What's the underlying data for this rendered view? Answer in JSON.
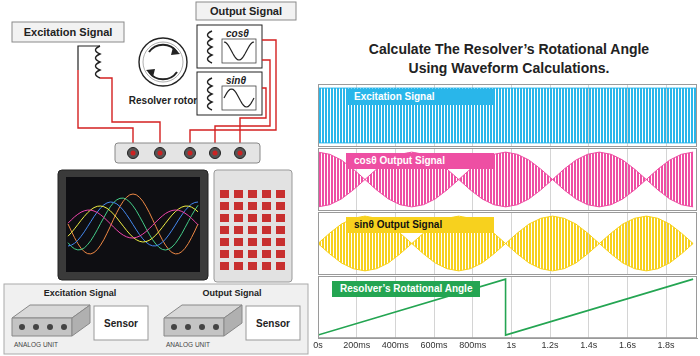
{
  "diagram": {
    "excitation_label": "Excitation Signal",
    "output_label": "Output Signal",
    "cos_label": "cosθ",
    "sin_label": "sinθ",
    "rotor_label": "Resolver rotor",
    "units": [
      {
        "title": "Excitation Signal",
        "device": "ANALOG UNIT",
        "box": "Sensor"
      },
      {
        "title": "Output Signal",
        "device": "ANALOG UNIT",
        "box": "Sensor"
      }
    ]
  },
  "chart_data": {
    "type": "line",
    "title": [
      "Calculate The Resolver’s Rotational Angle",
      "Using Waveform Calculations."
    ],
    "xlim": [
      0,
      1.96
    ],
    "xticks": [
      {
        "value": 0,
        "label": "0s"
      },
      {
        "value": 0.2,
        "label": "200ms"
      },
      {
        "value": 0.4,
        "label": "400ms"
      },
      {
        "value": 0.6,
        "label": "600ms"
      },
      {
        "value": 0.8,
        "label": "800ms"
      },
      {
        "value": 1,
        "label": "1s"
      },
      {
        "value": 1.2,
        "label": "1.2s"
      },
      {
        "value": 1.4,
        "label": "1.4s"
      },
      {
        "value": 1.6,
        "label": "1.6s"
      },
      {
        "value": 1.8,
        "label": "1.8s"
      }
    ],
    "grid": true,
    "tick_labels": "x",
    "series": [
      {
        "name": "Excitation Signal",
        "type": "envelope",
        "color": "#29b6ea",
        "ylim": [
          -1.15,
          1.15
        ],
        "x": [
          0,
          1.96
        ],
        "values": [
          1,
          1
        ]
      },
      {
        "name": "cosθ Output Signal",
        "type": "envelope",
        "color": "#ee4fa3",
        "ylim": [
          -1.15,
          1.15
        ],
        "x": [
          0,
          0.061,
          0.121,
          0.182,
          0.243,
          0.303,
          0.364,
          0.424,
          0.485,
          0.546,
          0.606,
          0.667,
          0.728,
          0.788,
          0.849,
          0.909,
          0.97,
          1.031,
          1.091,
          1.152,
          1.213,
          1.273,
          1.334,
          1.394,
          1.455,
          1.516,
          1.576,
          1.637,
          1.698,
          1.758,
          1.819,
          1.879,
          1.94
        ],
        "values": [
          1,
          0.92,
          0.71,
          0.38,
          0,
          0.38,
          0.71,
          0.92,
          1,
          0.92,
          0.71,
          0.38,
          0,
          0.38,
          0.71,
          0.92,
          1,
          0.92,
          0.71,
          0.38,
          0,
          0.38,
          0.71,
          0.92,
          1,
          0.92,
          0.71,
          0.38,
          0,
          0.38,
          0.71,
          0.92,
          1
        ]
      },
      {
        "name": "sinθ Output Signal",
        "type": "envelope",
        "color": "#f7d11e",
        "ylim": [
          -1.15,
          1.15
        ],
        "x": [
          0,
          0.061,
          0.121,
          0.182,
          0.243,
          0.303,
          0.364,
          0.424,
          0.485,
          0.546,
          0.606,
          0.667,
          0.728,
          0.788,
          0.849,
          0.909,
          0.97,
          1.031,
          1.091,
          1.152,
          1.213,
          1.273,
          1.334,
          1.394,
          1.455,
          1.516,
          1.576,
          1.637,
          1.698,
          1.758,
          1.819,
          1.879,
          1.94
        ],
        "values": [
          0,
          0.38,
          0.71,
          0.92,
          1,
          0.92,
          0.71,
          0.38,
          0,
          0.38,
          0.71,
          0.92,
          1,
          0.92,
          0.71,
          0.38,
          0,
          0.38,
          0.71,
          0.92,
          1,
          0.92,
          0.71,
          0.38,
          0,
          0.38,
          0.71,
          0.92,
          1,
          0.92,
          0.71,
          0.38,
          0
        ]
      },
      {
        "name": "Resolver’s Rotational Angle",
        "type": "line",
        "color": "#24a552",
        "ylim": [
          -20,
          380
        ],
        "x": [
          0,
          0.97,
          0.97,
          1.94
        ],
        "values": [
          0,
          360,
          0,
          360
        ]
      }
    ]
  }
}
